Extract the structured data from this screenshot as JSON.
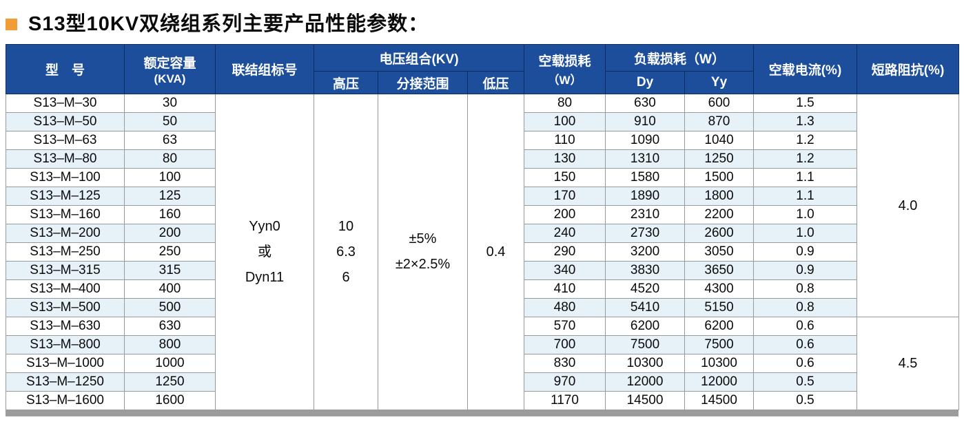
{
  "title": {
    "text": "S13型10KV双绕组系列主要产品性能参数："
  },
  "colors": {
    "header_bg": "#1d4e9c",
    "header_border": "#0c2c5e",
    "alt_row_bg": "#e6f1f8",
    "grid_border": "#949a9e",
    "bullet": "#f09d38",
    "bottom_bar": "#9c9c9c"
  },
  "table": {
    "header": {
      "model": "型　号",
      "capacity_l1": "额定容量",
      "capacity_l2": "(KVA)",
      "connection": "联结组标号",
      "voltage_group": "电压组合(KV)",
      "hv": "高压",
      "tap": "分接范围",
      "lv": "低压",
      "noload_l1": "空载损耗",
      "noload_l2": "（W）",
      "load": "负载损耗（W）",
      "dy": "Dy",
      "yy": "Yy",
      "current": "空载电流(%)",
      "impedance": "短路阻抗(%)"
    },
    "merged": {
      "connection": "Yyn0\n或\nDyn11",
      "hv": "10\n6.3\n6",
      "tap": "±5%\n±2×2.5%",
      "lv": "0.4",
      "impedance_top": {
        "value": "4.0",
        "rows": 12
      },
      "impedance_bottom": {
        "value": "4.5",
        "rows": 5
      }
    },
    "rows": [
      {
        "model": "S13–M–30",
        "capacity": "30",
        "noload": "80",
        "dy": "630",
        "yy": "600",
        "current": "1.5"
      },
      {
        "model": "S13–M–50",
        "capacity": "50",
        "noload": "100",
        "dy": "910",
        "yy": "870",
        "current": "1.3"
      },
      {
        "model": "S13–M–63",
        "capacity": "63",
        "noload": "110",
        "dy": "1090",
        "yy": "1040",
        "current": "1.2"
      },
      {
        "model": "S13–M–80",
        "capacity": "80",
        "noload": "130",
        "dy": "1310",
        "yy": "1250",
        "current": "1.2"
      },
      {
        "model": "S13–M–100",
        "capacity": "100",
        "noload": "150",
        "dy": "1580",
        "yy": "1500",
        "current": "1.1"
      },
      {
        "model": "S13–M–125",
        "capacity": "125",
        "noload": "170",
        "dy": "1890",
        "yy": "1800",
        "current": "1.1"
      },
      {
        "model": "S13–M–160",
        "capacity": "160",
        "noload": "200",
        "dy": "2310",
        "yy": "2200",
        "current": "1.0"
      },
      {
        "model": "S13–M–200",
        "capacity": "200",
        "noload": "240",
        "dy": "2730",
        "yy": "2600",
        "current": "1.0"
      },
      {
        "model": "S13–M–250",
        "capacity": "250",
        "noload": "290",
        "dy": "3200",
        "yy": "3050",
        "current": "0.9"
      },
      {
        "model": "S13–M–315",
        "capacity": "315",
        "noload": "340",
        "dy": "3830",
        "yy": "3650",
        "current": "0.9"
      },
      {
        "model": "S13–M–400",
        "capacity": "400",
        "noload": "410",
        "dy": "4520",
        "yy": "4300",
        "current": "0.8"
      },
      {
        "model": "S13–M–500",
        "capacity": "500",
        "noload": "480",
        "dy": "5410",
        "yy": "5150",
        "current": "0.8"
      },
      {
        "model": "S13–M–630",
        "capacity": "630",
        "noload": "570",
        "dy": "6200",
        "yy": "6200",
        "current": "0.6"
      },
      {
        "model": "S13–M–800",
        "capacity": "800",
        "noload": "700",
        "dy": "7500",
        "yy": "7500",
        "current": "0.6"
      },
      {
        "model": "S13–M–1000",
        "capacity": "1000",
        "noload": "830",
        "dy": "10300",
        "yy": "10300",
        "current": "0.6"
      },
      {
        "model": "S13–M–1250",
        "capacity": "1250",
        "noload": "970",
        "dy": "12000",
        "yy": "12000",
        "current": "0.5"
      },
      {
        "model": "S13–M–1600",
        "capacity": "1600",
        "noload": "1170",
        "dy": "14500",
        "yy": "14500",
        "current": "0.5"
      }
    ]
  }
}
